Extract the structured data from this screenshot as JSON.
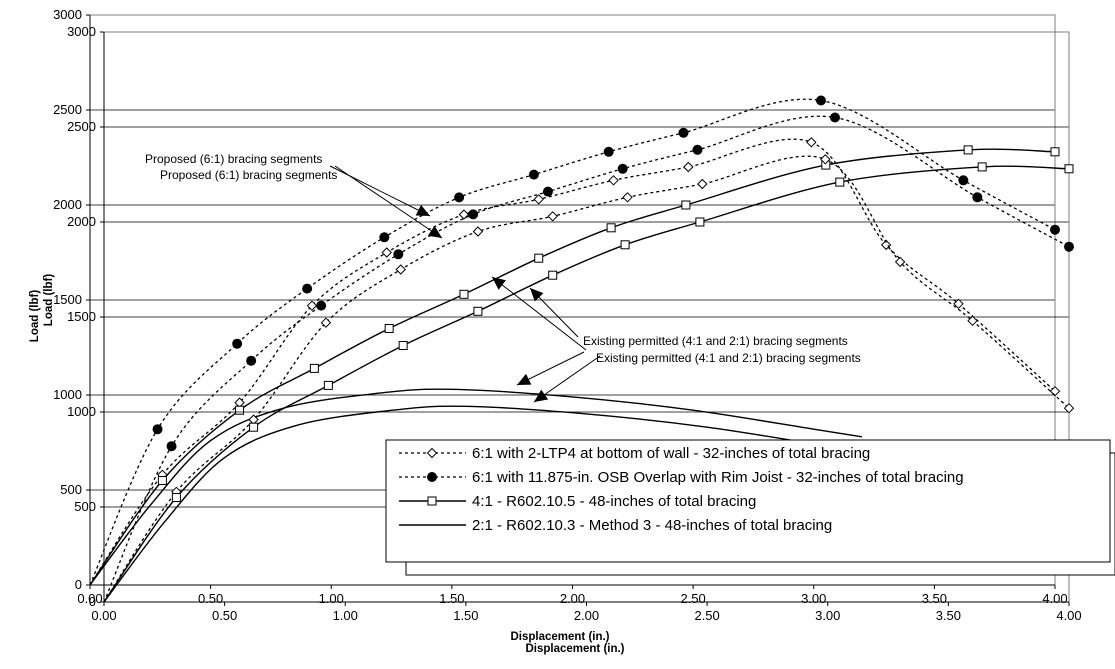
{
  "chart_data": [
    {
      "type": "line",
      "title": "",
      "xlabel": "Displacement (in.)",
      "ylabel": "Load (lbf)",
      "xlim": [
        0,
        4
      ],
      "ylim": [
        0,
        3000
      ],
      "x_ticks": [
        "0.00",
        "0.50",
        "1.00",
        "1.50",
        "2.00",
        "2.50",
        "3.00",
        "3.50",
        "4.00"
      ],
      "y_ticks": [
        "0",
        "500",
        "1000",
        "1500",
        "2000",
        "2500",
        "3000"
      ],
      "grid": "horizontal",
      "legend_position": "lower-right",
      "series": [
        {
          "name": "6:1 with 2-LTP4 at bottom of wall - 32-inches of total bracing",
          "style": "dotted",
          "marker": "diamond",
          "x": [
            0,
            0.3,
            0.62,
            0.92,
            1.23,
            1.55,
            1.86,
            2.17,
            2.48,
            2.99,
            3.3,
            3.6,
            4.0
          ],
          "y": [
            0,
            580,
            960,
            1470,
            1750,
            1950,
            2030,
            2130,
            2200,
            2330,
            1790,
            1480,
            1020
          ]
        },
        {
          "name": "6:1 with 11.875-in. OSB Overlap with Rim Joist - 32-inches of total bracing",
          "style": "dotted",
          "marker": "circle",
          "x": [
            0,
            0.28,
            0.61,
            0.9,
            1.22,
            1.53,
            1.84,
            2.15,
            2.46,
            3.03,
            3.62,
            4.0
          ],
          "y": [
            0,
            820,
            1270,
            1560,
            1830,
            2040,
            2160,
            2280,
            2380,
            2550,
            2130,
            1870
          ]
        },
        {
          "name": "4:1 - R602.10.5 - 48-inches of total bracing",
          "style": "solid",
          "marker": "square",
          "x": [
            0,
            0.3,
            0.62,
            0.93,
            1.24,
            1.55,
            1.86,
            2.16,
            2.47,
            3.05,
            3.64,
            4.0
          ],
          "y": [
            0,
            550,
            920,
            1140,
            1350,
            1530,
            1720,
            1880,
            2000,
            2210,
            2290,
            2280
          ]
        },
        {
          "name": "2:1 - R602.10.3 - Method 3 - 48-inches of total bracing",
          "style": "solid",
          "marker": "none",
          "x": [
            0,
            0.25,
            0.5,
            0.8,
            1.2,
            1.5,
            2.0,
            2.5,
            3.0,
            3.2
          ],
          "y": [
            0,
            420,
            760,
            930,
            1010,
            1030,
            990,
            920,
            820,
            780
          ]
        }
      ]
    },
    {
      "type": "line",
      "title": "",
      "xlabel": "Displacement (in.)",
      "ylabel": "Load (lbf)",
      "xlim": [
        0,
        4
      ],
      "ylim": [
        0,
        3000
      ],
      "x_ticks": [
        "0.00",
        "0.50",
        "1.00",
        "1.50",
        "2.00",
        "2.50",
        "3.00",
        "3.50",
        "4.00"
      ],
      "y_ticks": [
        "0",
        "500",
        "1000",
        "1500",
        "2000",
        "2500",
        "3000"
      ],
      "grid": "horizontal",
      "legend_position": "lower-right",
      "series": [
        {
          "name": "6:1 with 2-LTP4 at bottom of wall - 32-inches of total bracing",
          "style": "dotted",
          "marker": "diamond",
          "x": [
            0,
            0.3,
            0.62,
            0.92,
            1.23,
            1.55,
            1.86,
            2.17,
            2.48,
            2.99,
            3.3,
            3.6,
            4.0
          ],
          "y": [
            0,
            580,
            960,
            1470,
            1750,
            1950,
            2030,
            2130,
            2200,
            2330,
            1790,
            1480,
            1020
          ]
        },
        {
          "name": "6:1 with 11.875-in. OSB Overlap with Rim Joist - 32-inches of total bracing",
          "style": "dotted",
          "marker": "circle",
          "x": [
            0,
            0.28,
            0.61,
            0.9,
            1.22,
            1.53,
            1.84,
            2.15,
            2.46,
            3.03,
            3.62,
            4.0
          ],
          "y": [
            0,
            820,
            1270,
            1560,
            1830,
            2040,
            2160,
            2280,
            2380,
            2550,
            2130,
            1870
          ]
        },
        {
          "name": "4:1 - R602.10.5 - 48-inches of total bracing",
          "style": "solid",
          "marker": "square",
          "x": [
            0,
            0.3,
            0.62,
            0.93,
            1.24,
            1.55,
            1.86,
            2.16,
            2.47,
            3.05,
            3.64,
            4.0
          ],
          "y": [
            0,
            550,
            920,
            1140,
            1350,
            1530,
            1720,
            1880,
            2000,
            2210,
            2290,
            2280
          ]
        },
        {
          "name": "2:1 - R602.10.3 - Method 3 - 48-inches of total bracing",
          "style": "solid",
          "marker": "none",
          "x": [
            0,
            0.25,
            0.5,
            0.8,
            1.2,
            1.5,
            2.0,
            2.5,
            3.0,
            3.2
          ],
          "y": [
            0,
            420,
            760,
            930,
            1010,
            1030,
            990,
            920,
            820,
            780
          ]
        }
      ]
    }
  ],
  "annotations": [
    {
      "text": "Proposed (6:1) bracing segments",
      "tip": [
        1.38,
        1560
      ]
    },
    {
      "text": "Existing permitted (4:1 and 2:1) bracing segments",
      "tip": [
        1.78,
        1560
      ]
    }
  ]
}
